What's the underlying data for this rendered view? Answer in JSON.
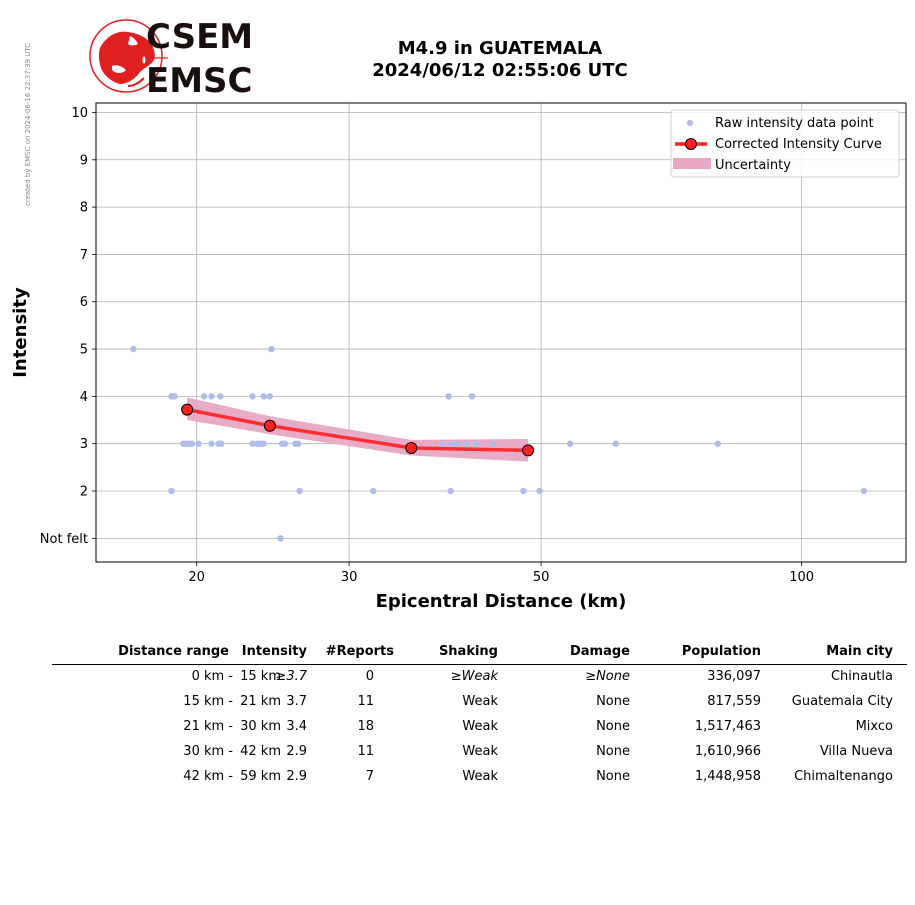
{
  "watermark": "created by EMSC on 2024-06-16 22:37:39 UTC",
  "logo": {
    "line1": "CSEM",
    "line2": "EMSC",
    "color": "#e02020"
  },
  "title": {
    "line1": "M4.9 in GUATEMALA",
    "line2": "2024/06/12 02:55:06 UTC"
  },
  "chart_data": {
    "type": "scatter",
    "xlabel": "Epicentral Distance (km)",
    "ylabel": "Intensity",
    "xscale": "log",
    "xlim": [
      15.3,
      132
    ],
    "ylim": [
      0.5,
      10.2
    ],
    "xticks": [
      20,
      30,
      50,
      100
    ],
    "yticks": [
      {
        "value": 1,
        "label": "Not felt"
      },
      {
        "value": 2,
        "label": "2"
      },
      {
        "value": 3,
        "label": "3"
      },
      {
        "value": 4,
        "label": "4"
      },
      {
        "value": 5,
        "label": "5"
      },
      {
        "value": 6,
        "label": "6"
      },
      {
        "value": 7,
        "label": "7"
      },
      {
        "value": 8,
        "label": "8"
      },
      {
        "value": 9,
        "label": "9"
      },
      {
        "value": 10,
        "label": "10"
      }
    ],
    "grid": true,
    "legend_position": "top-right",
    "colors": {
      "raw": "#aebce8",
      "curve": "#ff2020",
      "uncertainty": "#e8a8c4"
    },
    "series": [
      {
        "name": "Raw intensity data point",
        "points": [
          [
            16.9,
            5
          ],
          [
            18.7,
            4
          ],
          [
            18.85,
            4
          ],
          [
            20.4,
            4
          ],
          [
            20.8,
            4
          ],
          [
            21.3,
            4
          ],
          [
            23.2,
            4
          ],
          [
            23.9,
            4
          ],
          [
            24.3,
            4
          ],
          [
            24.4,
            5
          ],
          [
            39.1,
            4
          ],
          [
            41.6,
            4
          ],
          [
            19.3,
            3
          ],
          [
            19.45,
            3
          ],
          [
            19.6,
            3
          ],
          [
            19.75,
            3
          ],
          [
            20.1,
            3
          ],
          [
            20.8,
            3
          ],
          [
            21.2,
            3
          ],
          [
            21.35,
            3
          ],
          [
            23.2,
            3
          ],
          [
            23.5,
            3
          ],
          [
            23.7,
            3
          ],
          [
            23.9,
            3
          ],
          [
            25.1,
            3
          ],
          [
            25.3,
            3
          ],
          [
            26.0,
            3
          ],
          [
            26.2,
            3
          ],
          [
            38.5,
            3
          ],
          [
            39.4,
            3
          ],
          [
            40.0,
            3
          ],
          [
            41.0,
            3
          ],
          [
            42.0,
            3
          ],
          [
            44.0,
            3
          ],
          [
            54.0,
            3
          ],
          [
            61.0,
            3
          ],
          [
            80.0,
            3
          ],
          [
            18.7,
            2
          ],
          [
            26.3,
            2
          ],
          [
            32.0,
            2
          ],
          [
            39.3,
            2
          ],
          [
            47.7,
            2
          ],
          [
            49.8,
            2
          ],
          [
            118.0,
            2
          ],
          [
            25.0,
            1
          ]
        ]
      },
      {
        "name": "Corrected Intensity Curve",
        "points": [
          [
            19.5,
            3.72
          ],
          [
            24.3,
            3.38
          ],
          [
            35.4,
            2.91
          ],
          [
            48.3,
            2.86
          ]
        ]
      },
      {
        "name": "Uncertainty",
        "band": {
          "x": [
            19.5,
            24.3,
            35.4,
            48.3
          ],
          "lower": [
            3.5,
            3.2,
            2.75,
            2.62
          ],
          "upper": [
            3.98,
            3.58,
            3.08,
            3.1
          ]
        }
      }
    ]
  },
  "table": {
    "headers": [
      "Distance range",
      "Intensity",
      "#Reports",
      "Shaking",
      "Damage",
      "Population",
      "Main city"
    ],
    "rows": [
      {
        "from": "0 km -",
        "to": "15 km",
        "intensity": "≥3.7",
        "reports": "0",
        "shaking": "≥Weak",
        "damage": "≥None",
        "population": "336,097",
        "city": "Chinautla"
      },
      {
        "from": "15 km -",
        "to": "21 km",
        "intensity": "3.7",
        "reports": "11",
        "shaking": "Weak",
        "damage": "None",
        "population": "817,559",
        "city": "Guatemala City"
      },
      {
        "from": "21 km -",
        "to": "30 km",
        "intensity": "3.4",
        "reports": "18",
        "shaking": "Weak",
        "damage": "None",
        "population": "1,517,463",
        "city": "Mixco"
      },
      {
        "from": "30 km -",
        "to": "42 km",
        "intensity": "2.9",
        "reports": "11",
        "shaking": "Weak",
        "damage": "None",
        "population": "1,610,966",
        "city": "Villa Nueva"
      },
      {
        "from": "42 km -",
        "to": "59 km",
        "intensity": "2.9",
        "reports": "7",
        "shaking": "Weak",
        "damage": "None",
        "population": "1,448,958",
        "city": "Chimaltenango"
      }
    ]
  }
}
